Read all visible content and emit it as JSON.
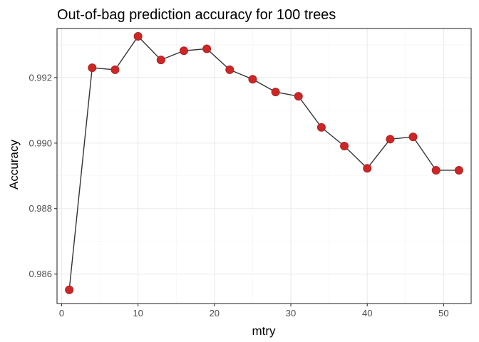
{
  "chart_data": {
    "type": "line",
    "title": "Out-of-bag prediction accuracy for 100 trees",
    "xlabel": "mtry",
    "ylabel": "Accuracy",
    "xlim": [
      -0.6,
      53.6
    ],
    "ylim": [
      0.9851,
      0.9935
    ],
    "x_ticks": [
      0,
      10,
      20,
      30,
      40,
      50
    ],
    "y_ticks": [
      0.986,
      0.988,
      0.99,
      0.992
    ],
    "y_tick_labels": [
      "0.986",
      "0.988",
      "0.990",
      "0.992"
    ],
    "x_minor": [
      5,
      15,
      25,
      35,
      45
    ],
    "y_minor": [
      0.985,
      0.987,
      0.989,
      0.991,
      0.993
    ],
    "grid": true,
    "legend": "none",
    "point_color": "#cd2626",
    "line_color": "#333333",
    "series": [
      {
        "x": [
          1,
          4,
          7,
          10,
          13,
          16,
          19,
          22,
          25,
          28,
          31,
          34,
          37,
          40,
          43,
          46,
          49,
          52
        ],
        "y": [
          0.98552,
          0.9923,
          0.99224,
          0.99326,
          0.99254,
          0.99282,
          0.99288,
          0.99224,
          0.99195,
          0.99156,
          0.99143,
          0.99048,
          0.98991,
          0.98923,
          0.99012,
          0.99019,
          0.98917,
          0.98917
        ]
      }
    ]
  }
}
